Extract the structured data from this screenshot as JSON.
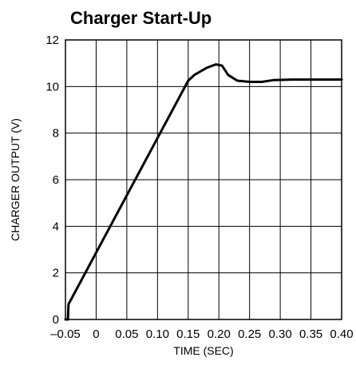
{
  "chart_data": {
    "type": "line",
    "title": "Charger Start-Up",
    "xlabel": "TIME (SEC)",
    "ylabel": "CHARGER OUTPUT (V)",
    "xlim": [
      -0.05,
      0.4
    ],
    "ylim": [
      0,
      12
    ],
    "x_ticks": [
      -0.05,
      0,
      0.05,
      0.1,
      0.15,
      0.2,
      0.25,
      0.3,
      0.35,
      0.4
    ],
    "x_tick_labels": [
      "–0.05",
      "0",
      "0.05",
      "0.10",
      "0.15",
      "0.20",
      "0.25",
      "0.30",
      "0.35",
      "0.40"
    ],
    "y_ticks": [
      0,
      2,
      4,
      6,
      8,
      10,
      12
    ],
    "y_tick_labels": [
      "0",
      "2",
      "4",
      "6",
      "8",
      "10",
      "12"
    ],
    "grid": true,
    "series": [
      {
        "x": [
          -0.05,
          -0.046,
          -0.045,
          0.15,
          0.16,
          0.18,
          0.195,
          0.205,
          0.215,
          0.23,
          0.25,
          0.27,
          0.29,
          0.32,
          0.35,
          0.4
        ],
        "y": [
          0,
          0,
          0.65,
          10.25,
          10.5,
          10.8,
          10.95,
          10.9,
          10.5,
          10.25,
          10.2,
          10.2,
          10.28,
          10.3,
          10.3,
          10.3
        ]
      }
    ]
  }
}
